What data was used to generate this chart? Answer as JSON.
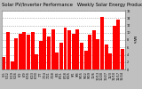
{
  "title": "Solar PV/Inverter Performance   Weekly Solar Energy Production",
  "title2": "Weekly Solar Energy Production",
  "bar_color": "#ff0000",
  "background_color": "#c0c0c0",
  "plot_bg_color": "#ffffff",
  "grid_color": "#808080",
  "values": [
    3.5,
    10.2,
    2.1,
    8.5,
    9.8,
    10.1,
    9.5,
    10.3,
    4.2,
    7.8,
    11.2,
    8.9,
    10.8,
    4.5,
    7.2,
    11.5,
    10.6,
    9.7,
    10.9,
    7.3,
    5.1,
    9.4,
    10.7,
    8.2,
    14.2,
    6.8,
    4.3,
    11.8,
    13.5,
    5.6
  ],
  "xlabels": [
    "5/5",
    "5/12",
    "5/19",
    "5/26",
    "6/2",
    "6/9",
    "6/16",
    "6/23",
    "6/30",
    "7/7",
    "7/14",
    "7/21",
    "7/28",
    "8/4",
    "8/11",
    "8/18",
    "8/25",
    "9/1",
    "9/8",
    "9/15",
    "9/22",
    "9/29",
    "10/6",
    "10/13",
    "10/20",
    "10/27",
    "11/3",
    "11/10",
    "11/17",
    "11/24"
  ],
  "ylabel": "kWh",
  "ylim": [
    0,
    16
  ],
  "yticks": [
    0,
    2,
    4,
    6,
    8,
    10,
    12,
    14,
    16
  ],
  "title_fontsize": 3.8,
  "tick_fontsize": 2.5,
  "ylabel_fontsize": 3.0
}
